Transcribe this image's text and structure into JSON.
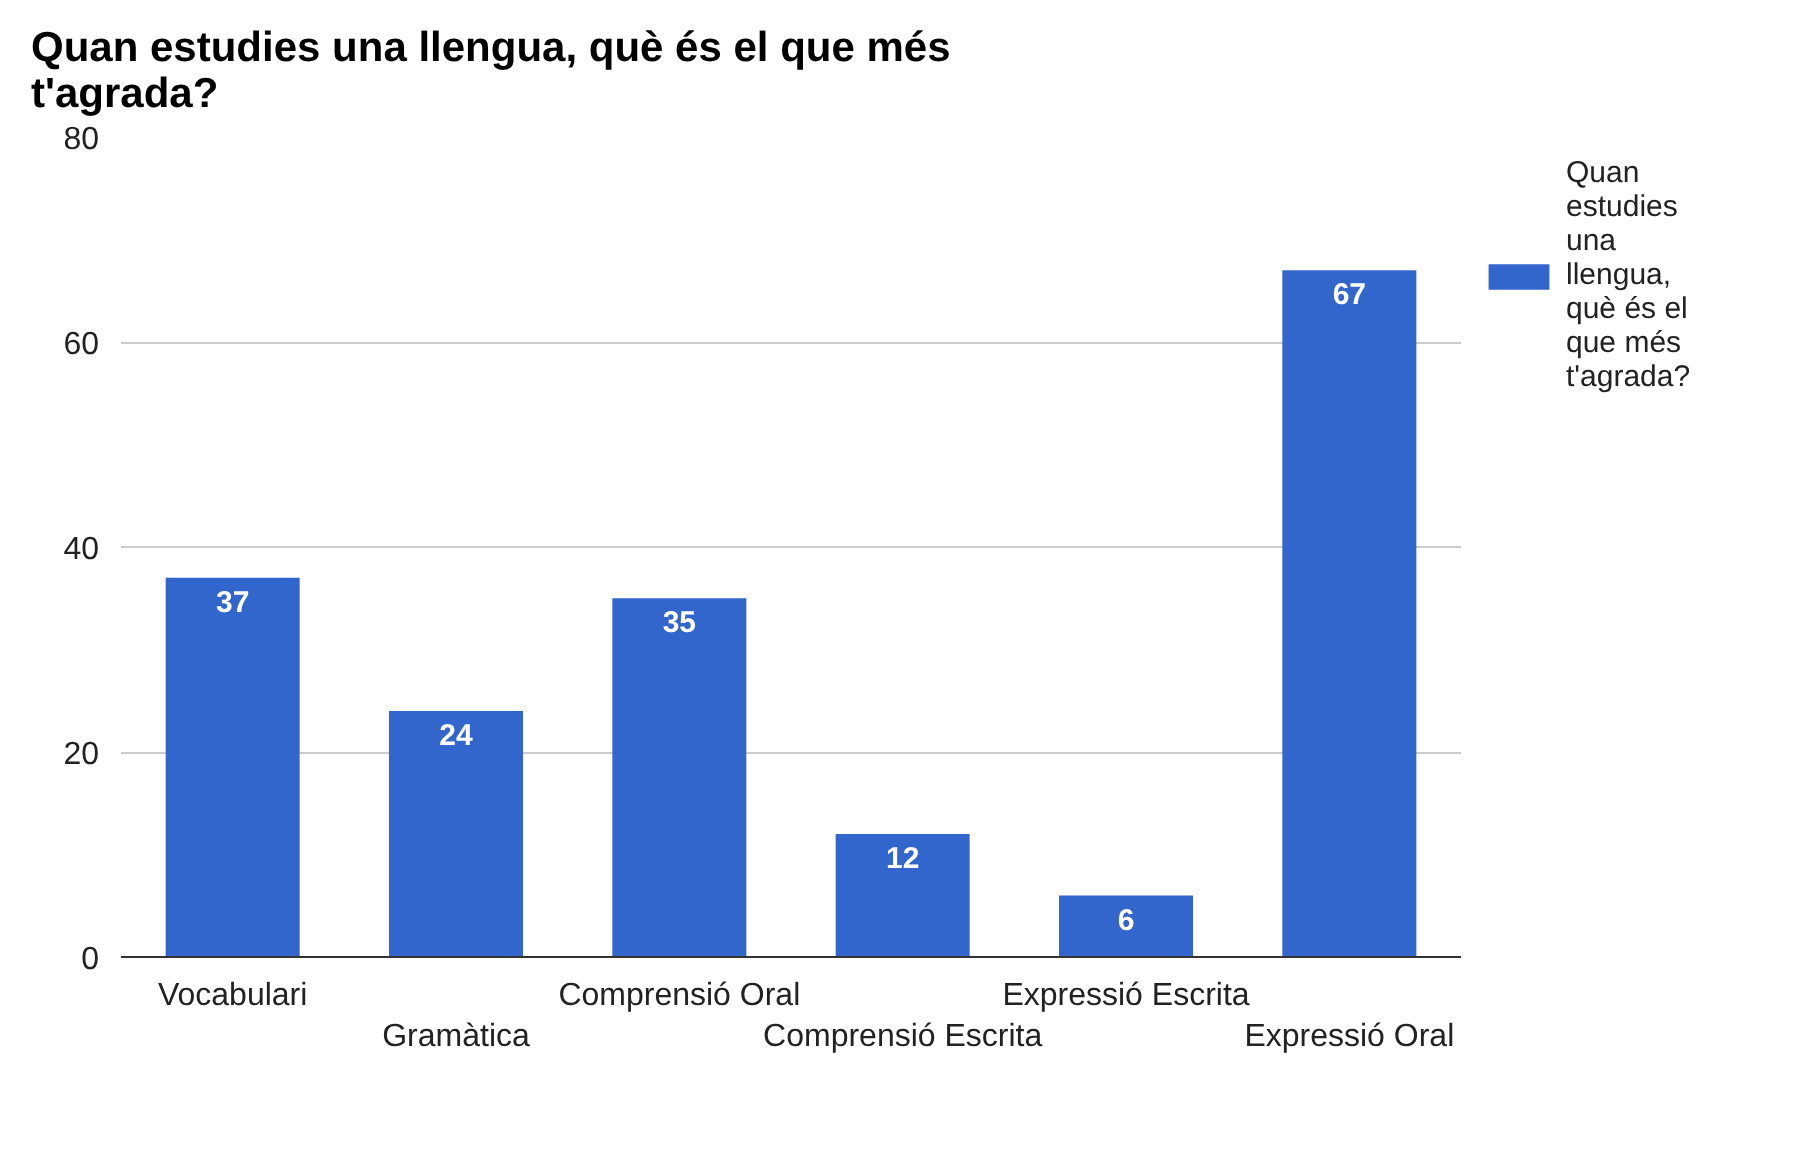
{
  "chart_data": {
    "type": "bar",
    "title": "Quan estudies una llengua, què és el que més t'agrada?",
    "categories": [
      "Vocabulari",
      "Gramàtica",
      "Comprensió Oral",
      "Comprensió Escrita",
      "Expressió Escrita",
      "Expressió Oral"
    ],
    "series": [
      {
        "name": "Quan estudies una llengua, què és el que més t'agrada?",
        "color": "#3366cc",
        "values": [
          37,
          24,
          35,
          12,
          6,
          67
        ]
      }
    ],
    "ylim": [
      0,
      80
    ],
    "yticks": [
      0,
      20,
      40,
      60,
      80
    ],
    "grid": "y",
    "legend": "top right",
    "data_labels": true
  }
}
